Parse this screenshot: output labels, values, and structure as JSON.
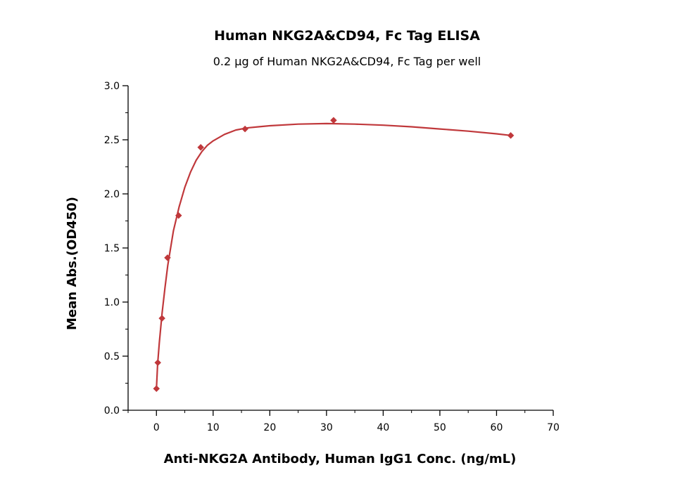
{
  "chart_data": {
    "type": "scatter",
    "title": "Human NKG2A&CD94, Fc Tag ELISA",
    "subtitle": "0.2 μg of Human NKG2A&CD94, Fc Tag per well",
    "xlabel": "Anti-NKG2A Antibody, Human IgG1 Conc. (ng/mL)",
    "ylabel": "Mean Abs.(OD450)",
    "xlim": [
      -5,
      70
    ],
    "ylim": [
      0,
      3.0
    ],
    "x_ticks": [
      0,
      10,
      20,
      30,
      40,
      50,
      60,
      70
    ],
    "y_ticks": [
      0.0,
      0.5,
      1.0,
      1.5,
      2.0,
      2.5,
      3.0
    ],
    "x_tick_labels": [
      "0",
      "10",
      "20",
      "30",
      "40",
      "50",
      "60",
      "70"
    ],
    "y_tick_labels": [
      "0.0",
      "0.5",
      "1.0",
      "1.5",
      "2.0",
      "2.5",
      "3.0"
    ],
    "grid": false,
    "series": [
      {
        "color": "#c0383b",
        "marker": "diamond",
        "x": [
          0.0,
          0.24,
          0.98,
          1.95,
          3.91,
          7.81,
          15.63,
          31.25,
          62.5
        ],
        "y": [
          0.2,
          0.44,
          0.85,
          1.41,
          1.8,
          2.43,
          2.6,
          2.68,
          2.54
        ]
      }
    ],
    "fit_curve": {
      "color": "#c0383b",
      "x": [
        0.0,
        0.2,
        0.5,
        1.0,
        1.5,
        2.0,
        3.0,
        4.0,
        5.0,
        6.0,
        7.0,
        8.0,
        9.0,
        10.0,
        12.0,
        14.0,
        16.0,
        18.0,
        20.0,
        25.0,
        30.0,
        35.0,
        40.0,
        45.0,
        50.0,
        55.0,
        60.0,
        62.5
      ],
      "y": [
        0.2,
        0.42,
        0.62,
        0.9,
        1.13,
        1.34,
        1.66,
        1.88,
        2.06,
        2.2,
        2.31,
        2.39,
        2.45,
        2.49,
        2.55,
        2.59,
        2.61,
        2.62,
        2.63,
        2.645,
        2.65,
        2.645,
        2.635,
        2.62,
        2.6,
        2.58,
        2.555,
        2.54
      ]
    }
  }
}
